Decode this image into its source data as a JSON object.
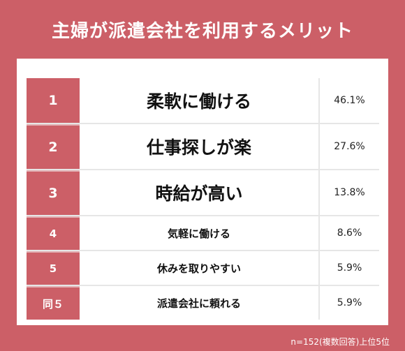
{
  "title": "主婦が派遣会社を利用するメリット",
  "chart_data": {
    "type": "table",
    "title": "主婦が派遣会社を利用するメリット",
    "rows": [
      {
        "rank": "1",
        "label": "柔軟に働ける",
        "value": 46.1,
        "display": "46.1%"
      },
      {
        "rank": "2",
        "label": "仕事探しが楽",
        "value": 27.6,
        "display": "27.6%"
      },
      {
        "rank": "3",
        "label": "時給が高い",
        "value": 13.8,
        "display": "13.8%"
      },
      {
        "rank": "4",
        "label": "気軽に働ける",
        "value": 8.6,
        "display": "8.6%"
      },
      {
        "rank": "5",
        "label": "休みを取りやすい",
        "value": 5.9,
        "display": "5.9%"
      },
      {
        "rank": "同５",
        "label": "派遣会社に頼れる",
        "value": 5.9,
        "display": "5.9%"
      }
    ],
    "note": "n=152(複数回答)上位5位"
  },
  "colors": {
    "accent": "#cc5f67"
  }
}
